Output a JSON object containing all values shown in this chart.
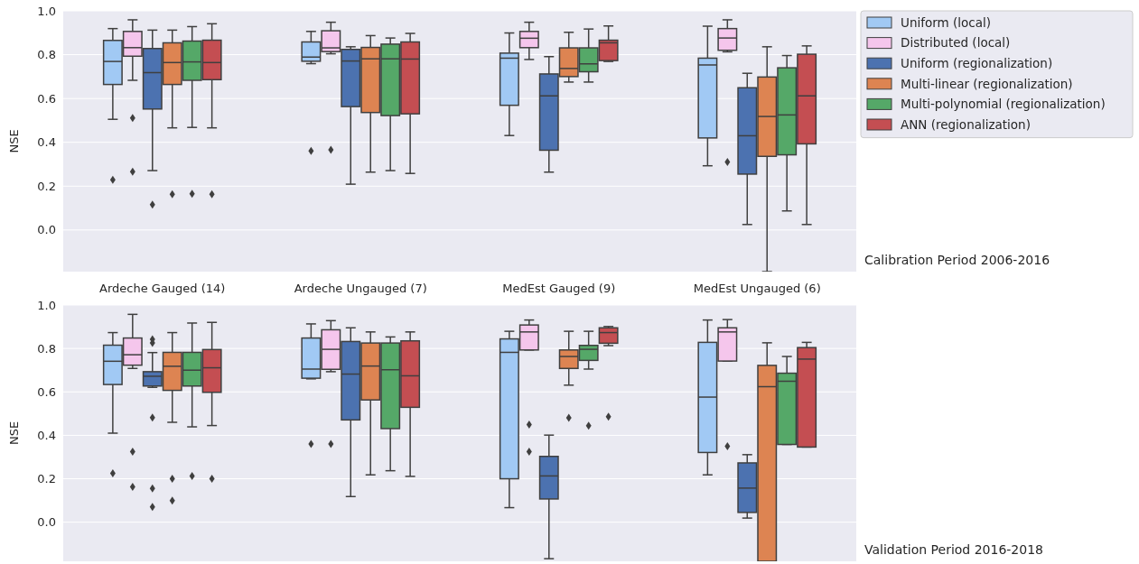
{
  "chart_data": [
    {
      "type": "box",
      "ylabel": "NSE",
      "categories": [
        "Ardeche Gauged (14)",
        "Ardeche Ungauged (7)",
        "MedEst Gauged (9)",
        "MedEst Ungauged (6)"
      ],
      "ylim": [
        -0.19,
        1.0
      ],
      "yticks": [
        {
          "value": 0,
          "label": "0.0"
        },
        {
          "value": 0.2,
          "label": "0.2"
        },
        {
          "value": 0.4,
          "label": "0.4"
        },
        {
          "value": 0.6,
          "label": "0.6"
        },
        {
          "value": 0.8,
          "label": "0.8"
        },
        {
          "value": 1,
          "label": "1.0"
        }
      ],
      "grid": "y",
      "legend": "top right",
      "annotations": [
        "Calibration Period 2006-2016"
      ],
      "series": [
        {
          "name": "Uniform (local)",
          "color": "#a1c9f4",
          "boxes": [
            {
              "low": 0.505,
              "q1": 0.664,
              "median": 0.769,
              "q3": 0.865,
              "high": 0.919,
              "outliers": [
                0.229
              ]
            },
            {
              "low": 0.759,
              "q1": 0.77,
              "median": 0.789,
              "q3": 0.858,
              "high": 0.906,
              "outliers": [
                0.361
              ]
            },
            {
              "low": 0.431,
              "q1": 0.569,
              "median": 0.784,
              "q3": 0.807,
              "high": 0.899
            },
            {
              "low": 0.293,
              "q1": 0.42,
              "median": 0.753,
              "q3": 0.784,
              "high": 0.93
            }
          ]
        },
        {
          "name": "Distributed (local)",
          "color": "#f5c6ec",
          "boxes": [
            {
              "low": 0.683,
              "q1": 0.793,
              "median": 0.832,
              "q3": 0.906,
              "high": 0.959,
              "outliers": [
                0.511,
                0.266
              ]
            },
            {
              "low": 0.804,
              "q1": 0.814,
              "median": 0.831,
              "q3": 0.909,
              "high": 0.948,
              "outliers": [
                0.366
              ]
            },
            {
              "low": 0.778,
              "q1": 0.832,
              "median": 0.875,
              "q3": 0.906,
              "high": 0.948
            },
            {
              "low": 0.813,
              "q1": 0.82,
              "median": 0.876,
              "q3": 0.919,
              "high": 0.959,
              "outliers": [
                0.31
              ]
            }
          ]
        },
        {
          "name": "Uniform (regionalization)",
          "color": "#4c72b0",
          "boxes": [
            {
              "low": 0.271,
              "q1": 0.552,
              "median": 0.718,
              "q3": 0.828,
              "high": 0.912,
              "outliers": [
                0.116
              ]
            },
            {
              "low": 0.209,
              "q1": 0.563,
              "median": 0.771,
              "q3": 0.824,
              "high": 0.836
            },
            {
              "low": 0.264,
              "q1": 0.364,
              "median": 0.612,
              "q3": 0.712,
              "high": 0.791
            },
            {
              "low": 0.025,
              "q1": 0.255,
              "median": 0.43,
              "q3": 0.649,
              "high": 0.715
            }
          ]
        },
        {
          "name": "Multi-linear (regionalization)",
          "color": "#dd8452",
          "boxes": [
            {
              "low": 0.466,
              "q1": 0.664,
              "median": 0.764,
              "q3": 0.854,
              "high": 0.912,
              "outliers": [
                0.163
              ]
            },
            {
              "low": 0.264,
              "q1": 0.536,
              "median": 0.781,
              "q3": 0.833,
              "high": 0.887
            },
            {
              "low": 0.675,
              "q1": 0.7,
              "median": 0.737,
              "q3": 0.831,
              "high": 0.902
            },
            {
              "low": -0.19,
              "q1": 0.336,
              "median": 0.518,
              "q3": 0.698,
              "high": 0.836
            }
          ]
        },
        {
          "name": "Multi-polynomial (regionalization)",
          "color": "#55a868",
          "boxes": [
            {
              "low": 0.468,
              "q1": 0.683,
              "median": 0.767,
              "q3": 0.862,
              "high": 0.928,
              "outliers": [
                0.165
              ]
            },
            {
              "low": 0.271,
              "q1": 0.522,
              "median": 0.781,
              "q3": 0.848,
              "high": 0.876
            },
            {
              "low": 0.675,
              "q1": 0.722,
              "median": 0.758,
              "q3": 0.831,
              "high": 0.917
            },
            {
              "low": 0.087,
              "q1": 0.343,
              "median": 0.525,
              "q3": 0.74,
              "high": 0.796
            }
          ]
        },
        {
          "name": "ANN (regionalization)",
          "color": "#c44e52",
          "boxes": [
            {
              "low": 0.466,
              "q1": 0.686,
              "median": 0.764,
              "q3": 0.866,
              "high": 0.941,
              "outliers": [
                0.163
              ]
            },
            {
              "low": 0.258,
              "q1": 0.53,
              "median": 0.78,
              "q3": 0.858,
              "high": 0.897
            },
            {
              "low": 0.769,
              "q1": 0.773,
              "median": 0.854,
              "q3": 0.866,
              "high": 0.931
            },
            {
              "low": 0.025,
              "q1": 0.393,
              "median": 0.612,
              "q3": 0.802,
              "high": 0.84
            }
          ]
        }
      ]
    },
    {
      "type": "box",
      "ylabel": "NSE",
      "categories": [
        null,
        null,
        null,
        null
      ],
      "ylim": [
        -0.18,
        1.0
      ],
      "yticks": [
        {
          "value": 0,
          "label": "0.0"
        },
        {
          "value": 0.2,
          "label": "0.2"
        },
        {
          "value": 0.4,
          "label": "0.4"
        },
        {
          "value": 0.6,
          "label": "0.6"
        },
        {
          "value": 0.8,
          "label": "0.8"
        },
        {
          "value": 1,
          "label": "1.0"
        }
      ],
      "grid": "y",
      "tick_labels": "y",
      "annotations": [
        "Validation Period 2016-2018"
      ],
      "series": [
        {
          "color": "#a1c9f4",
          "boxes": [
            {
              "low": 0.41,
              "q1": 0.634,
              "median": 0.741,
              "q3": 0.815,
              "high": 0.873,
              "outliers": [
                0.225
              ]
            },
            {
              "low": 0.66,
              "q1": 0.663,
              "median": 0.705,
              "q3": 0.848,
              "high": 0.913,
              "outliers": [
                0.36
              ]
            },
            {
              "low": 0.067,
              "q1": 0.2,
              "median": 0.782,
              "q3": 0.844,
              "high": 0.879
            },
            {
              "low": 0.218,
              "q1": 0.321,
              "median": 0.576,
              "q3": 0.828,
              "high": 0.931
            }
          ]
        },
        {
          "color": "#f5c6ec",
          "boxes": [
            {
              "low": 0.708,
              "q1": 0.723,
              "median": 0.771,
              "q3": 0.848,
              "high": 0.957,
              "outliers": [
                0.325,
                0.163
              ]
            },
            {
              "low": 0.693,
              "q1": 0.704,
              "median": 0.796,
              "q3": 0.886,
              "high": 0.928,
              "outliers": [
                0.36
              ]
            },
            {
              "low": 0.793,
              "q1": 0.793,
              "median": 0.876,
              "q3": 0.908,
              "high": 0.931,
              "outliers": [
                0.449,
                0.325
              ]
            },
            {
              "low": 0.742,
              "q1": 0.742,
              "median": 0.876,
              "q3": 0.895,
              "high": 0.933,
              "outliers": [
                0.35
              ]
            }
          ]
        },
        {
          "color": "#4c72b0",
          "boxes": [
            {
              "low": 0.621,
              "q1": 0.627,
              "median": 0.672,
              "q3": 0.693,
              "high": 0.781,
              "outliers": [
                0.842,
                0.826,
                0.482,
                0.156,
                0.07
              ]
            },
            {
              "low": 0.118,
              "q1": 0.471,
              "median": 0.682,
              "q3": 0.832,
              "high": 0.895
            },
            {
              "low": -0.168,
              "q1": 0.107,
              "median": 0.213,
              "q3": 0.303,
              "high": 0.401
            },
            {
              "low": 0.019,
              "q1": 0.045,
              "median": 0.157,
              "q3": 0.273,
              "high": 0.311
            }
          ]
        },
        {
          "color": "#dd8452",
          "boxes": [
            {
              "low": 0.46,
              "q1": 0.607,
              "median": 0.718,
              "q3": 0.782,
              "high": 0.873,
              "outliers": [
                0.2,
                0.099
              ]
            },
            {
              "low": 0.218,
              "q1": 0.563,
              "median": 0.719,
              "q3": 0.825,
              "high": 0.876
            },
            {
              "low": 0.631,
              "q1": 0.708,
              "median": 0.763,
              "q3": 0.793,
              "high": 0.879,
              "outliers": [
                0.481
              ]
            },
            {
              "low": -0.18,
              "q1": -0.18,
              "median": 0.624,
              "q3": 0.722,
              "high": 0.826
            }
          ]
        },
        {
          "color": "#55a868",
          "boxes": [
            {
              "low": 0.439,
              "q1": 0.627,
              "median": 0.7,
              "q3": 0.782,
              "high": 0.917,
              "outliers": [
                0.213
              ]
            },
            {
              "low": 0.237,
              "q1": 0.431,
              "median": 0.702,
              "q3": 0.825,
              "high": 0.853
            },
            {
              "low": 0.705,
              "q1": 0.745,
              "median": 0.796,
              "q3": 0.814,
              "high": 0.879,
              "outliers": [
                0.444
              ]
            },
            {
              "low": 0.358,
              "q1": 0.358,
              "median": 0.649,
              "q3": 0.686,
              "high": 0.763
            }
          ]
        },
        {
          "color": "#c44e52",
          "boxes": [
            {
              "low": 0.445,
              "q1": 0.598,
              "median": 0.711,
              "q3": 0.795,
              "high": 0.92,
              "outliers": [
                0.2
              ]
            },
            {
              "low": 0.211,
              "q1": 0.529,
              "median": 0.674,
              "q3": 0.835,
              "high": 0.876
            },
            {
              "low": 0.813,
              "q1": 0.824,
              "median": 0.873,
              "q3": 0.895,
              "high": 0.901,
              "outliers": [
                0.486
              ]
            },
            {
              "low": 0.346,
              "q1": 0.346,
              "median": 0.751,
              "q3": 0.804,
              "high": 0.828
            }
          ]
        }
      ]
    }
  ]
}
